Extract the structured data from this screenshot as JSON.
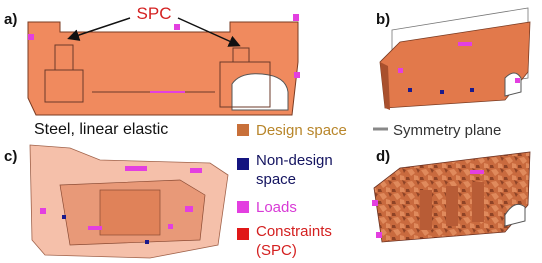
{
  "panels": [
    {
      "label": "a)"
    },
    {
      "label": "b)"
    },
    {
      "label": "c)"
    },
    {
      "label": "d)"
    }
  ],
  "annotation": "SPC",
  "material": "Steel, linear elastic",
  "legend": [
    {
      "lines": [
        "Design space"
      ]
    },
    {
      "lines": [
        "Non-design",
        "space"
      ]
    },
    {
      "lines": [
        "Loads"
      ]
    },
    {
      "lines": [
        "Constraints",
        "(SPC)"
      ]
    }
  ],
  "symmetry_plane": "Symmetry plane"
}
